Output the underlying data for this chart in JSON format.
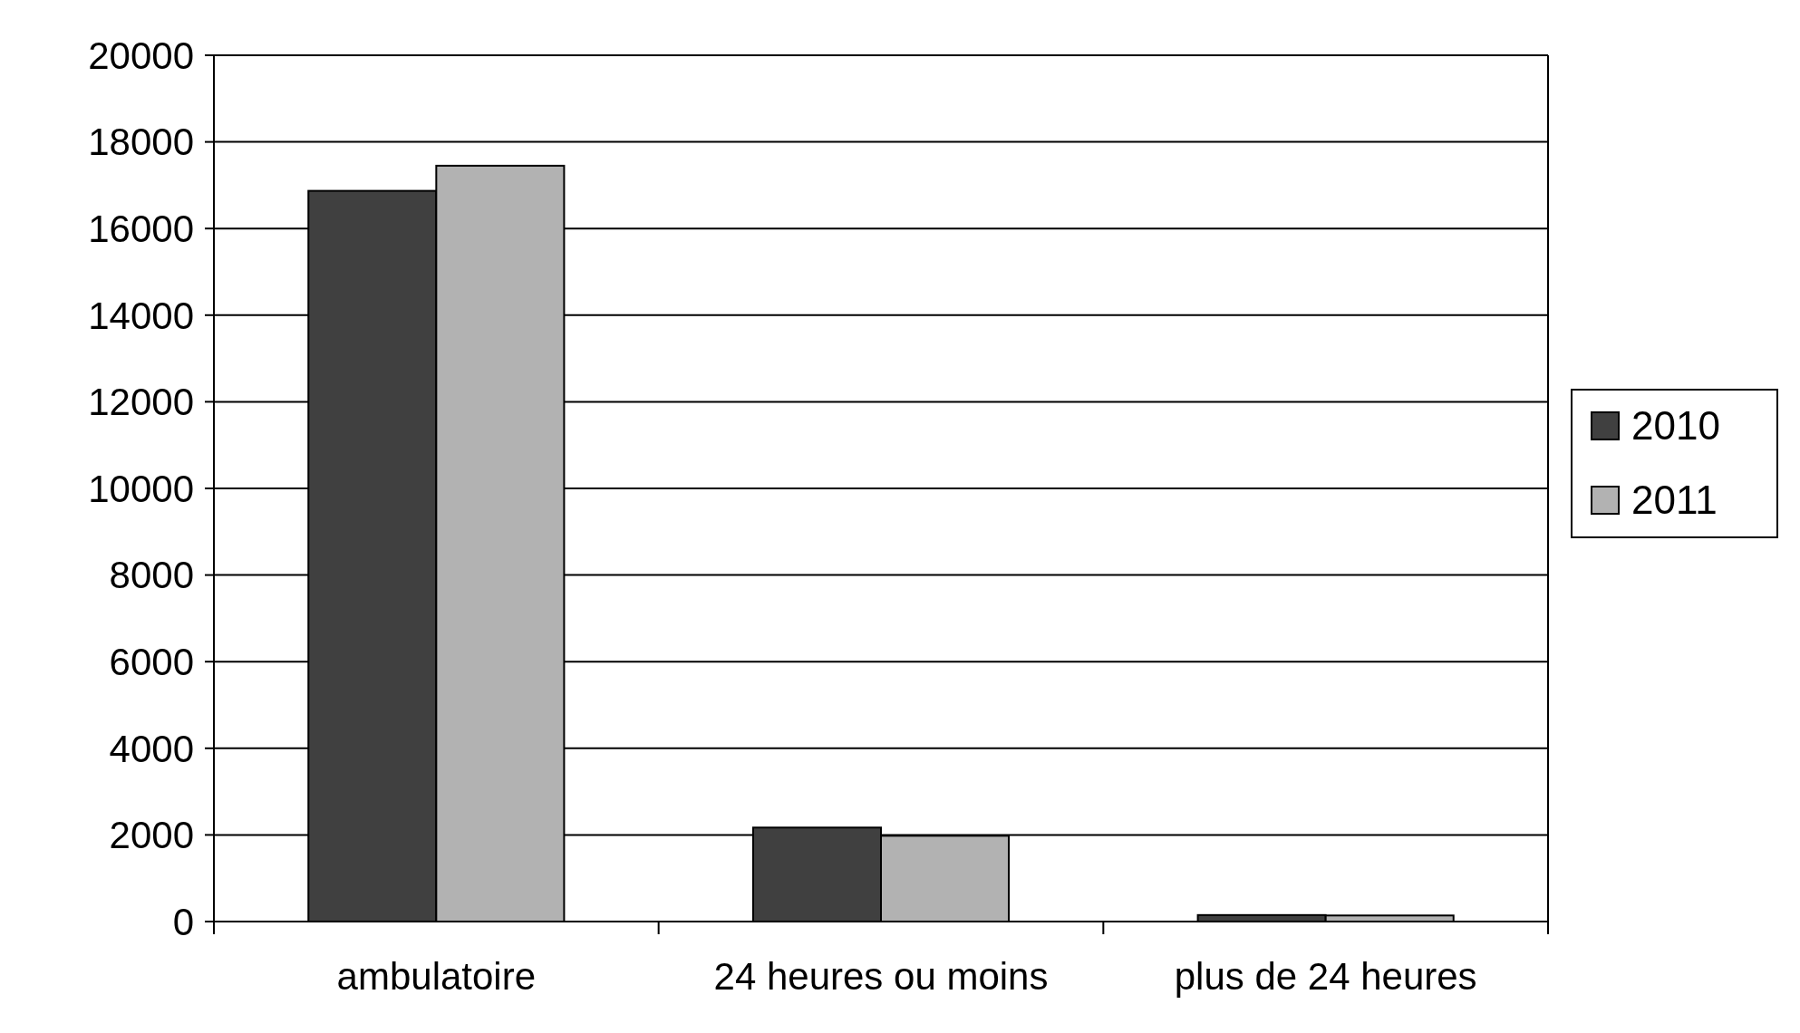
{
  "chart_data": {
    "type": "bar",
    "categories": [
      "ambulatoire",
      "24 heures ou moins",
      "plus de 24 heures"
    ],
    "series": [
      {
        "name": "2010",
        "color": "#404040",
        "values": [
          16870,
          2170,
          150
        ]
      },
      {
        "name": "2011",
        "color": "#b2b2b2",
        "values": [
          17450,
          1980,
          140
        ]
      }
    ],
    "ylim": [
      0,
      20000
    ],
    "yticks": [
      0,
      2000,
      4000,
      6000,
      8000,
      10000,
      12000,
      14000,
      16000,
      18000,
      20000
    ],
    "grid": "y",
    "legend": "right"
  }
}
